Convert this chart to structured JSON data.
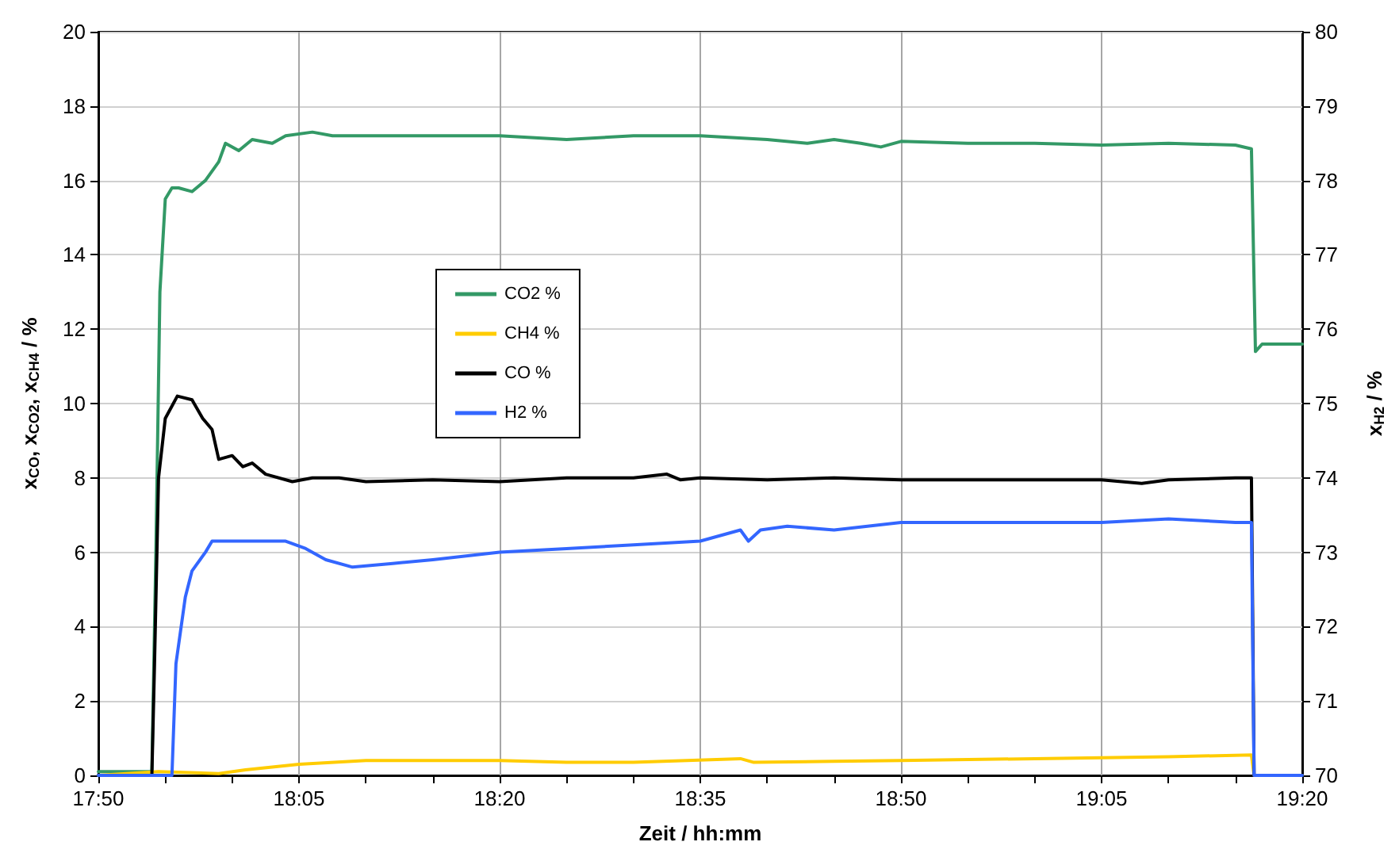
{
  "chart_data": {
    "type": "line",
    "xlabel": "Zeit / hh:mm",
    "ylabel": "x$_{CO}$, x$_{CO2}$, x$_{CH4}$ / %",
    "y2label": "x$_{H2}$ / %",
    "xlim": [
      17.8333,
      19.3333
    ],
    "xticks": [
      {
        "value": 17.8333,
        "label": "17:50"
      },
      {
        "value": 17.9167,
        "label": null
      },
      {
        "value": 18.0,
        "label": null
      },
      {
        "value": 18.0833,
        "label": "18:05"
      },
      {
        "value": 18.1667,
        "label": null
      },
      {
        "value": 18.25,
        "label": null
      },
      {
        "value": 18.3333,
        "label": "18:20"
      },
      {
        "value": 18.4167,
        "label": null
      },
      {
        "value": 18.5,
        "label": null
      },
      {
        "value": 18.5833,
        "label": "18:35"
      },
      {
        "value": 18.6667,
        "label": null
      },
      {
        "value": 18.75,
        "label": null
      },
      {
        "value": 18.8333,
        "label": "18:50"
      },
      {
        "value": 18.9167,
        "label": null
      },
      {
        "value": 19.0,
        "label": null
      },
      {
        "value": 19.0833,
        "label": "19:05"
      },
      {
        "value": 19.1667,
        "label": null
      },
      {
        "value": 19.25,
        "label": null
      },
      {
        "value": 19.3333,
        "label": "19:20"
      }
    ],
    "ylim": [
      0,
      20
    ],
    "yticks": [
      0,
      2,
      4,
      6,
      8,
      10,
      12,
      14,
      16,
      18,
      20
    ],
    "y2lim": [
      70,
      80
    ],
    "y2ticks": [
      70,
      71,
      72,
      73,
      74,
      75,
      76,
      77,
      78,
      79,
      80
    ],
    "grid": true,
    "legend": "center",
    "marker": "none",
    "line_style": "solid",
    "series": [
      {
        "name": "CO2 %",
        "color": "#339966",
        "x": [
          17.8333,
          17.9,
          17.905,
          17.91,
          17.9167,
          17.925,
          17.9333,
          17.95,
          17.9667,
          17.9833,
          17.9917,
          18.0083,
          18.025,
          18.05,
          18.0667,
          18.1,
          18.125,
          18.1667,
          18.25,
          18.3333,
          18.4167,
          18.5,
          18.5833,
          18.6667,
          18.7167,
          18.75,
          18.7833,
          18.8083,
          18.8333,
          18.9167,
          19.0,
          19.0833,
          19.1667,
          19.25,
          19.27,
          19.275,
          19.2833,
          19.3333
        ],
        "values": [
          0.1,
          0.1,
          6,
          13,
          15.5,
          15.8,
          15.8,
          15.7,
          16.0,
          16.5,
          17.0,
          16.8,
          17.1,
          17.0,
          17.2,
          17.3,
          17.2,
          17.2,
          17.2,
          17.2,
          17.1,
          17.2,
          17.2,
          17.1,
          17.0,
          17.1,
          17.0,
          16.9,
          17.05,
          17.0,
          17.0,
          16.95,
          17.0,
          16.95,
          16.85,
          11.4,
          11.6,
          11.6
        ]
      },
      {
        "name": "CH4 %",
        "color": "#ffcc00",
        "x": [
          17.8333,
          17.9083,
          17.9833,
          18.0167,
          18.0833,
          18.1667,
          18.25,
          18.3333,
          18.4167,
          18.5,
          18.6333,
          18.65,
          18.75,
          18.8333,
          19.0,
          19.1667,
          19.27,
          19.2733,
          19.3333
        ],
        "values": [
          0,
          0.1,
          0.05,
          0.15,
          0.3,
          0.4,
          0.4,
          0.4,
          0.35,
          0.35,
          0.45,
          0.35,
          0.38,
          0.4,
          0.45,
          0.5,
          0.55,
          0,
          0
        ]
      },
      {
        "name": "CO %",
        "color": "#000000",
        "x": [
          17.8333,
          17.9,
          17.9033,
          17.9083,
          17.9167,
          17.9317,
          17.95,
          17.9633,
          17.975,
          17.9833,
          18.0,
          18.0133,
          18.025,
          18.0417,
          18.075,
          18.1,
          18.1333,
          18.1667,
          18.25,
          18.3333,
          18.4167,
          18.5,
          18.5417,
          18.5583,
          18.5833,
          18.6667,
          18.75,
          18.8333,
          18.9167,
          19.0,
          19.0833,
          19.1333,
          19.1667,
          19.25,
          19.27,
          19.2733,
          19.3333
        ],
        "values": [
          0,
          0,
          3,
          8,
          9.6,
          10.2,
          10.1,
          9.6,
          9.3,
          8.5,
          8.6,
          8.3,
          8.4,
          8.1,
          7.9,
          8.0,
          8.0,
          7.9,
          7.95,
          7.9,
          8.0,
          8.0,
          8.1,
          7.95,
          8.0,
          7.95,
          8.0,
          7.95,
          7.95,
          7.95,
          7.95,
          7.85,
          7.95,
          8.0,
          8.0,
          0,
          0
        ]
      },
      {
        "name": "H2 %",
        "color": "#3366ff",
        "axis": "y2",
        "x": [
          17.8333,
          17.925,
          17.93,
          17.9417,
          17.95,
          17.9667,
          17.975,
          18.0667,
          18.0917,
          18.1167,
          18.15,
          18.2,
          18.25,
          18.3333,
          18.4167,
          18.5,
          18.5833,
          18.6333,
          18.6433,
          18.6583,
          18.6917,
          18.75,
          18.8333,
          18.9167,
          19.0,
          19.0833,
          19.1667,
          19.25,
          19.27,
          19.2733,
          19.3333
        ],
        "values": [
          70,
          70,
          71.5,
          72.4,
          72.75,
          73.0,
          73.15,
          73.15,
          73.05,
          72.9,
          72.8,
          72.85,
          72.9,
          73.0,
          73.05,
          73.1,
          73.15,
          73.3,
          73.15,
          73.3,
          73.35,
          73.3,
          73.4,
          73.4,
          73.4,
          73.4,
          73.45,
          73.4,
          73.4,
          70,
          70
        ]
      }
    ]
  }
}
